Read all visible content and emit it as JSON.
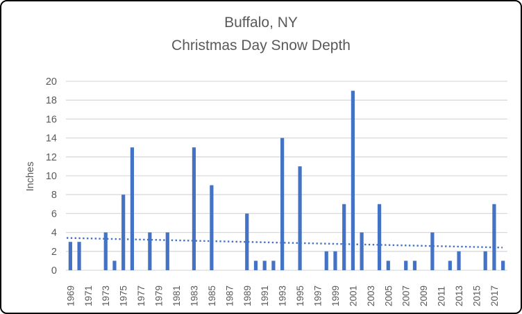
{
  "title": {
    "line1": "Buffalo, NY",
    "line2": "Christmas Day Snow Depth",
    "color": "#595959"
  },
  "chart_data": {
    "type": "bar",
    "title": "Buffalo, NY Christmas Day Snow Depth",
    "xlabel": "",
    "ylabel": "Inches",
    "ylim": [
      0,
      20
    ],
    "yticks": [
      0,
      2,
      4,
      6,
      8,
      10,
      12,
      14,
      16,
      18,
      20
    ],
    "grid": true,
    "legend": "none",
    "categories": [
      "1969",
      "1970",
      "1971",
      "1972",
      "1973",
      "1974",
      "1975",
      "1976",
      "1977",
      "1978",
      "1979",
      "1980",
      "1981",
      "1982",
      "1983",
      "1984",
      "1985",
      "1986",
      "1987",
      "1988",
      "1989",
      "1990",
      "1991",
      "1992",
      "1993",
      "1994",
      "1995",
      "1996",
      "1997",
      "1998",
      "1999",
      "2000",
      "2001",
      "2002",
      "2003",
      "2004",
      "2005",
      "2006",
      "2007",
      "2008",
      "2009",
      "2010",
      "2011",
      "2012",
      "2013",
      "2014",
      "2015",
      "2016",
      "2017",
      "2018"
    ],
    "values": [
      3,
      3,
      0,
      0,
      4,
      1,
      8,
      13,
      0,
      4,
      0,
      4,
      0,
      0,
      13,
      0,
      9,
      0,
      0,
      0,
      6,
      1,
      1,
      1,
      14,
      0,
      11,
      0,
      0,
      2,
      2,
      7,
      19,
      4,
      0,
      7,
      1,
      0,
      1,
      1,
      0,
      4,
      0,
      1,
      2,
      0,
      0,
      2,
      7,
      1
    ],
    "xtick_labels": [
      "1969",
      "1971",
      "1973",
      "1975",
      "1977",
      "1979",
      "1981",
      "1983",
      "1985",
      "1987",
      "1989",
      "1991",
      "1993",
      "1995",
      "1997",
      "1999",
      "2001",
      "2003",
      "2005",
      "2007",
      "2009",
      "2011",
      "2013",
      "2015",
      "2017"
    ],
    "trendline": {
      "style": "dotted",
      "start_value": 3.42,
      "end_value": 2.4
    },
    "colors": {
      "bar": "#4472C4",
      "trendline": "#4472C4",
      "gridline": "#D9D9D9",
      "axis_text": "#595959"
    }
  }
}
